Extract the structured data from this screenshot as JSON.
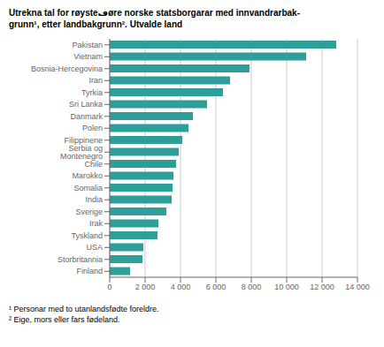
{
  "chart_data": {
    "type": "bar",
    "orientation": "horizontal",
    "title": "Utrekna tal for røysteفøre norske statsborgarar med innvandrarbak-\ngrunn¹, etter landbakgrunn². Utvalde land",
    "annotations": [
      "¹ Personar med to utanlandsfødte foreldre.",
      "² Eige, mors eller fars fødeland."
    ],
    "categories": [
      "Pakistan",
      "Vietnam",
      "Bosnia-Hercegovina",
      "Iran",
      "Tyrkia",
      "Sri Lanka",
      "Danmark",
      "Polen",
      "Filippinene",
      "Serbia og Montenegro",
      "Chile",
      "Marokko",
      "Somalia",
      "India",
      "Sverige",
      "Irak",
      "Tyskland",
      "USA",
      "Storbritannia",
      "Finland"
    ],
    "values": [
      12800,
      11100,
      7900,
      6800,
      6400,
      5500,
      4700,
      4450,
      4100,
      3900,
      3750,
      3600,
      3550,
      3500,
      3200,
      2750,
      2700,
      1900,
      1850,
      1150
    ],
    "color": "#2e9e98",
    "xlim": [
      0,
      14000
    ],
    "xticks": [
      0,
      {
        "value": 2000,
        "label": "2 000"
      },
      {
        "value": 4000,
        "label": "4 000"
      },
      {
        "value": 6000,
        "label": "6 000"
      },
      {
        "value": 8000,
        "label": "8 000"
      },
      {
        "value": 10000,
        "label": "10 000"
      },
      {
        "value": 12000,
        "label": "12 000"
      },
      {
        "value": 14000,
        "label": "14 000"
      }
    ],
    "grid": true
  }
}
